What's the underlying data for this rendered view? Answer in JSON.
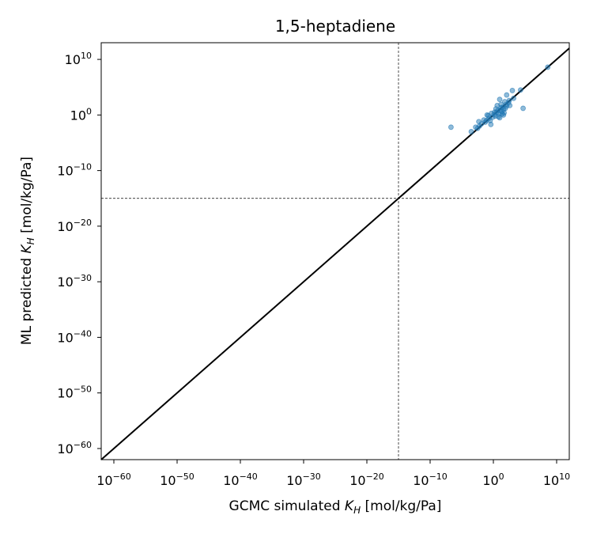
{
  "chart_data": {
    "type": "scatter",
    "title": "1,5-heptadiene",
    "xlabel": {
      "prefix": "GCMC simulated ",
      "symbol": "K",
      "sub": "H",
      "suffix": " [mol/kg/Pa]"
    },
    "ylabel": {
      "prefix": "ML predicted ",
      "symbol": "K",
      "sub": "H",
      "suffix": " [mol/kg/Pa]"
    },
    "xscale": "log",
    "yscale": "log",
    "xlim_exp": [
      -62,
      12
    ],
    "ylim_exp": [
      -62,
      13
    ],
    "tick_exponents": [
      -60,
      -50,
      -40,
      -30,
      -20,
      -10,
      0,
      10
    ],
    "tick_base": "10",
    "reference_line": "y = x",
    "threshold_exp": -15,
    "marker_color": "#1f77b4",
    "points_exp": [
      [
        8.6,
        8.6
      ],
      [
        4.3,
        4.5
      ],
      [
        3.0,
        4.4
      ],
      [
        3.2,
        3.0
      ],
      [
        2.5,
        2.6
      ],
      [
        2.1,
        3.6
      ],
      [
        1.0,
        2.8
      ],
      [
        4.7,
        1.2
      ],
      [
        1.6,
        0.0
      ],
      [
        2.1,
        1.6
      ],
      [
        2.0,
        1.9
      ],
      [
        1.9,
        1.2
      ],
      [
        1.7,
        0.4
      ],
      [
        1.5,
        1.4
      ],
      [
        1.3,
        0.6
      ],
      [
        1.1,
        0.9
      ],
      [
        1.2,
        1.3
      ],
      [
        0.9,
        0.2
      ],
      [
        0.7,
        0.8
      ],
      [
        0.5,
        0.5
      ],
      [
        0.3,
        -0.2
      ],
      [
        0.1,
        0.1
      ],
      [
        -0.1,
        -0.4
      ],
      [
        -0.3,
        0.3
      ],
      [
        -0.5,
        -1.0
      ],
      [
        -0.7,
        -0.6
      ],
      [
        -1.0,
        0.0
      ],
      [
        -1.3,
        -1.3
      ],
      [
        -1.5,
        -0.9
      ],
      [
        -1.9,
        -1.6
      ],
      [
        -2.2,
        -2.0
      ],
      [
        -2.5,
        -2.4
      ],
      [
        -2.8,
        -2.2
      ],
      [
        -3.5,
        -3.0
      ],
      [
        -6.7,
        -2.2
      ],
      [
        1.0,
        -0.5
      ],
      [
        1.6,
        1.0
      ],
      [
        2.4,
        2.2
      ],
      [
        0.6,
        1.7
      ],
      [
        -0.4,
        -1.7
      ],
      [
        1.8,
        2.4
      ],
      [
        1.4,
        0.2
      ],
      [
        0.2,
        0.5
      ],
      [
        -1.1,
        -1.0
      ],
      [
        2.6,
        1.7
      ],
      [
        -2.3,
        -1.2
      ],
      [
        1.2,
        1.9
      ],
      [
        0.8,
        -0.3
      ],
      [
        -0.8,
        -0.1
      ],
      [
        0.4,
        1.1
      ]
    ]
  }
}
